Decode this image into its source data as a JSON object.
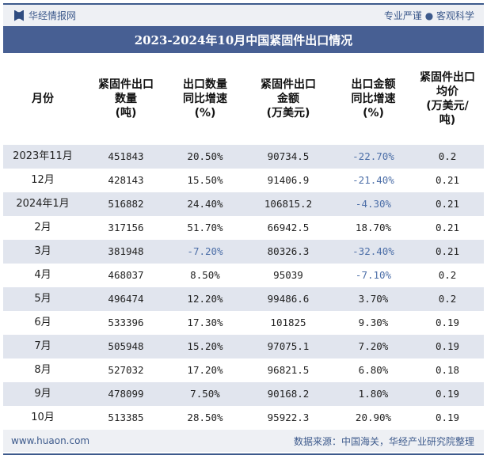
{
  "header": {
    "brand": "华经情报网",
    "slogan": "专业严谨 ● 客观科学"
  },
  "title": "2023-2024年10月中国紧固件出口情况",
  "table": {
    "columns": [
      "月份",
      "紧固件出口数量（吨）",
      "出口数量同比增速（%）",
      "紧固件出口金额（万美元）",
      "出口金额同比增速（%）",
      "紧固件出口均价（万美元/吨）"
    ],
    "column_lines": [
      [
        "月份"
      ],
      [
        "紧固件出口",
        "数量",
        "(吨)"
      ],
      [
        "出口数量",
        "同比增速",
        "(%)"
      ],
      [
        "紧固件出口",
        "金额",
        "(万美元)"
      ],
      [
        "出口金额",
        "同比增速",
        "(%)"
      ],
      [
        "紧固件出口",
        "均价",
        "(万美元/",
        "吨)"
      ]
    ],
    "rows": [
      [
        "2023年11月",
        "451843",
        "20.50%",
        "90734.5",
        "-22.70%",
        "0.2"
      ],
      [
        "12月",
        "428143",
        "15.50%",
        "91406.9",
        "-21.40%",
        "0.21"
      ],
      [
        "2024年1月",
        "516882",
        "24.40%",
        "106815.2",
        "-4.30%",
        "0.21"
      ],
      [
        "2月",
        "317156",
        "51.70%",
        "66942.5",
        "18.70%",
        "0.21"
      ],
      [
        "3月",
        "381948",
        "-7.20%",
        "80326.3",
        "-32.40%",
        "0.21"
      ],
      [
        "4月",
        "468037",
        "8.50%",
        "95039",
        "-7.10%",
        "0.2"
      ],
      [
        "5月",
        "496474",
        "12.20%",
        "99486.6",
        "3.70%",
        "0.2"
      ],
      [
        "6月",
        "533396",
        "17.30%",
        "101825",
        "9.30%",
        "0.19"
      ],
      [
        "7月",
        "505948",
        "15.20%",
        "97075.1",
        "7.20%",
        "0.19"
      ],
      [
        "8月",
        "527032",
        "17.20%",
        "96821.5",
        "6.80%",
        "0.18"
      ],
      [
        "9月",
        "478099",
        "7.50%",
        "90168.2",
        "1.80%",
        "0.19"
      ],
      [
        "10月",
        "513385",
        "28.50%",
        "95922.3",
        "20.90%",
        "0.19"
      ]
    ]
  },
  "footer": {
    "website": "www.huaon.com",
    "source": "数据来源：中国海关，华经产业研究院整理"
  },
  "colors": {
    "title_bar": "#475f93",
    "stripe": "#e1e5ee",
    "negative": "#4d6fa8"
  }
}
